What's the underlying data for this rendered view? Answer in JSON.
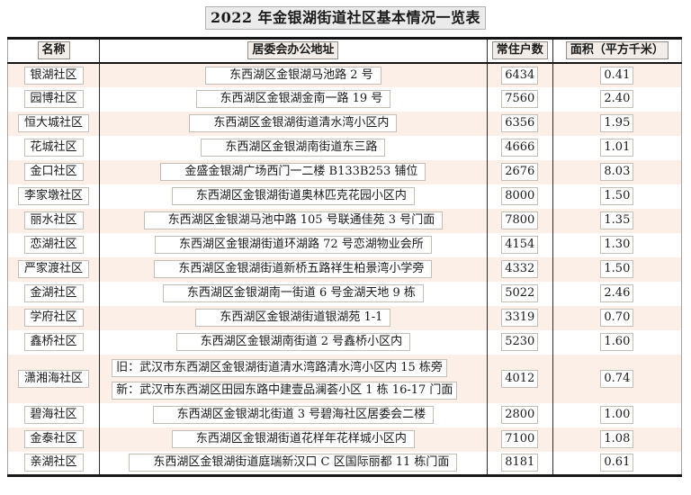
{
  "title": "2022 年金银湖街道社区基本情况一览表",
  "colors": {
    "row_alt_pink": "#fcefe7",
    "table_border": "#161616",
    "text_box_border": "#c3beb8",
    "header_box_fill": "#f2ede9",
    "title_box_fill": "#ebebeb"
  },
  "table": {
    "headers": {
      "name": "名称",
      "address": "居委会办公地址",
      "households": "常住户数",
      "area": "面积（平方千米）"
    },
    "rows": [
      {
        "name": "银湖社区",
        "address": "东西湖区金银湖马池路 2 号",
        "households": "6434",
        "area": "0.41"
      },
      {
        "name": "园博社区",
        "address": "东西湖区金银湖金南一路 19 号",
        "households": "7560",
        "area": "2.40"
      },
      {
        "name": "恒大城社区",
        "address": "东西湖区金银湖街道清水湾小区内",
        "households": "6356",
        "area": "1.95"
      },
      {
        "name": "花城社区",
        "address": "东西湖区金银湖南街道东三路",
        "households": "4666",
        "area": "1.01"
      },
      {
        "name": "金口社区",
        "address": "金盛金银湖广场西门一二楼 B133B253 铺位",
        "households": "2676",
        "area": "8.03"
      },
      {
        "name": "李家墩社区",
        "address": "东西湖区金银湖街道奥林匹克花园小区内",
        "households": "8000",
        "area": "1.50"
      },
      {
        "name": "丽水社区",
        "address": "东西湖区金银湖马池中路 105 号联通佳苑 3 号门面",
        "households": "7800",
        "area": "1.35"
      },
      {
        "name": "恋湖社区",
        "address": "东西湖区金银湖街道环湖路 72 号恋湖物业会所",
        "households": "4154",
        "area": "1.30"
      },
      {
        "name": "严家渡社区",
        "address": "东西湖区金银湖街道新桥五路祥生柏景湾小学旁",
        "households": "4332",
        "area": "1.50"
      },
      {
        "name": "金湖社区",
        "address": "东西湖区金银湖南一街道 6 号金湖天地 9 栋",
        "households": "5022",
        "area": "2.46"
      },
      {
        "name": "学府社区",
        "address": "东西湖区金银湖街道银湖苑 1-1",
        "households": "3319",
        "area": "0.70"
      },
      {
        "name": "鑫桥社区",
        "address": "东西湖区金银湖南街道 2 号鑫桥小区内",
        "households": "5230",
        "area": "1.60"
      },
      {
        "name": "潇湘海社区",
        "address_old": "旧：武汉市东西湖区金银湖街道清水湾路清水湾小区内 15 栋旁",
        "address_new": "新：武汉市东西湖区田园东路中建壹品澜荟小区 1 栋 16-17 门面",
        "households": "4012",
        "area": "0.74"
      },
      {
        "name": "碧海社区",
        "address": "东西湖区金银湖北街道 3 号碧海社区居委会二楼",
        "households": "2800",
        "area": "1.00"
      },
      {
        "name": "金泰社区",
        "address": "东西湖区金银湖街道花样年花样城小区内",
        "households": "7100",
        "area": "1.08"
      },
      {
        "name": "亲湖社区",
        "address": "东西湖区金银湖街道庭瑞新汉口 C 区国际丽都 11 栋门面",
        "households": "8181",
        "area": "0.61"
      }
    ]
  }
}
